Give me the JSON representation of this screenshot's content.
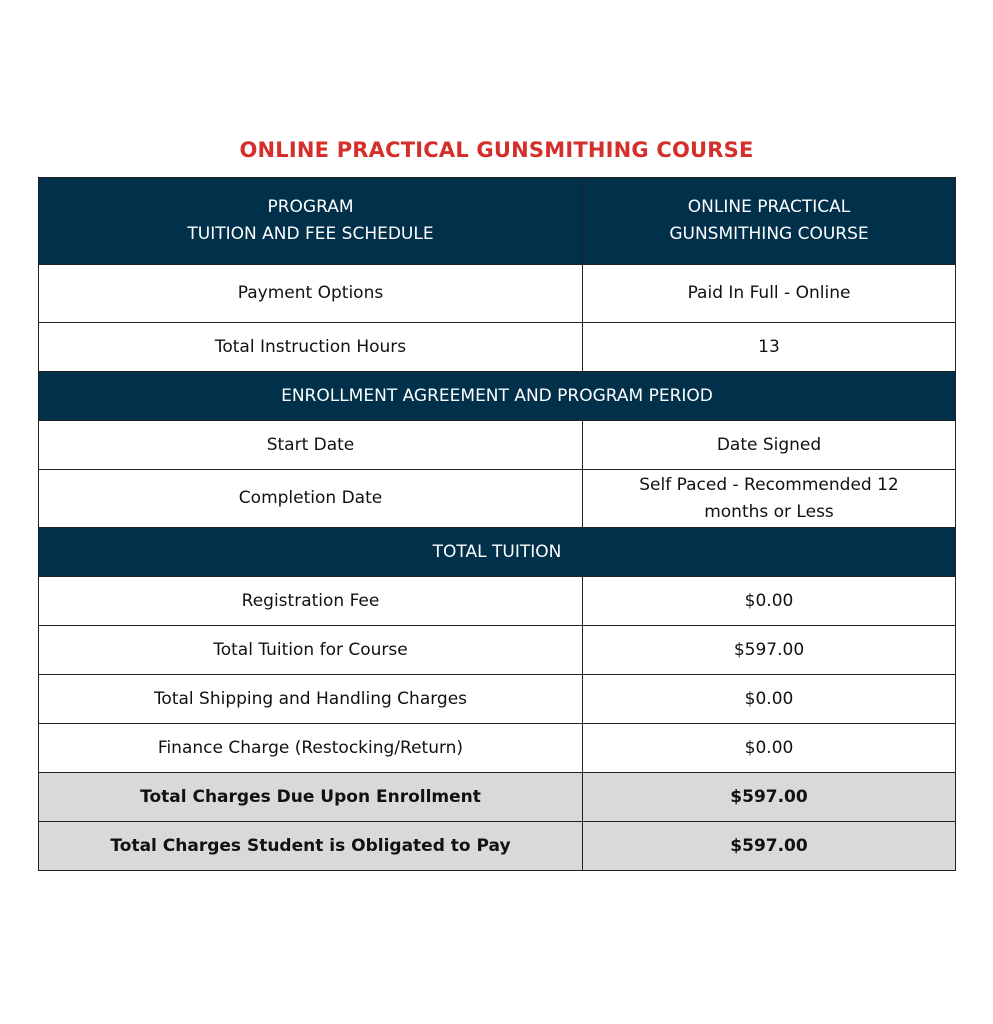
{
  "title": "ONLINE PRACTICAL GUNSMITHING COURSE",
  "colors": {
    "title": "#d42f2a",
    "header_bg": "#00304a",
    "total_bg": "#d9d9d9"
  },
  "header": {
    "left_line1": "PROGRAM",
    "left_line2": "TUITION AND FEE SCHEDULE",
    "right_line1": "ONLINE PRACTICAL",
    "right_line2": "GUNSMITHING COURSE"
  },
  "rows1": [
    {
      "label": "Payment Options",
      "value": "Paid In Full - Online"
    },
    {
      "label": "Total Instruction Hours",
      "value": "13"
    }
  ],
  "section1": "ENROLLMENT AGREEMENT AND PROGRAM PERIOD",
  "rows2": [
    {
      "label": "Start Date",
      "value": "Date Signed"
    },
    {
      "label": "Completion Date",
      "value": "Self Paced - Recommended 12 months or Less"
    }
  ],
  "section2": "TOTAL TUITION",
  "rows3": [
    {
      "label": "Registration Fee",
      "value": "$0.00"
    },
    {
      "label": "Total Tuition for Course",
      "value": "$597.00"
    },
    {
      "label": "Total Shipping and Handling Charges",
      "value": "$0.00"
    },
    {
      "label": "Finance Charge (Restocking/Return)",
      "value": "$0.00"
    }
  ],
  "totals": [
    {
      "label": "Total Charges Due Upon Enrollment",
      "value": "$597.00"
    },
    {
      "label": "Total Charges Student is Obligated to Pay",
      "value": "$597.00"
    }
  ]
}
